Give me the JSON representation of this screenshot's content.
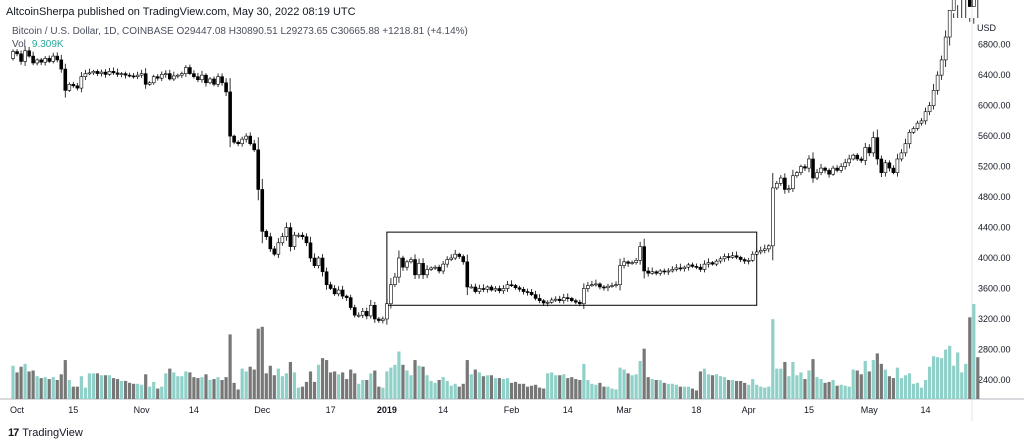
{
  "header": {
    "text": "AltcoinSherpa published on TradingView.com, May 30, 2022 08:19 UTC"
  },
  "legend": {
    "line1": "Bitcoin / U.S. Dollar, 1D, COINBASE  O29447.08  H30890.51  L29273.65  C30665.88  +1218.81 (+4.14%)",
    "vol_label": "Vol",
    "vol_value": "9.309K"
  },
  "footer": {
    "logo_text": "17",
    "brand": "TradingView"
  },
  "chart_data": {
    "type": "candlestick",
    "currency": "USD",
    "y_range": [
      2150,
      7150
    ],
    "y_ticks": [
      "2400.00",
      "2800.00",
      "3200.00",
      "3600.00",
      "4000.00",
      "4400.00",
      "4800.00",
      "5200.00",
      "5600.00",
      "6000.00",
      "6400.00",
      "6800.00"
    ],
    "y_tick_values": [
      2400,
      2800,
      3200,
      3600,
      4000,
      4400,
      4800,
      5200,
      5600,
      6000,
      6400,
      6800
    ],
    "x_ticks": [
      "Oct",
      "15",
      "Nov",
      "14",
      "Dec",
      "17",
      "2019",
      "14",
      "Feb",
      "14",
      "Mar",
      "18",
      "Apr",
      "15",
      "May",
      "14"
    ],
    "x_tick_days": [
      2,
      16,
      33,
      46,
      63,
      80,
      94,
      108,
      125,
      139,
      153,
      171,
      184,
      199,
      214,
      228
    ],
    "annotation_box": {
      "from_day": 94,
      "to_day": 186,
      "from_price": 3380,
      "to_price": 4340
    },
    "candle_colors": {
      "up": "#ffffff",
      "down": "#000000",
      "outline": "#000000"
    },
    "volume_colors": {
      "up": "#8fd1c8",
      "down": "#777777"
    },
    "volume_level_range": [
      0,
      100
    ],
    "closes": [
      6620,
      6710,
      6680,
      6580,
      6720,
      6650,
      6560,
      6600,
      6570,
      6620,
      6580,
      6650,
      6600,
      6480,
      6200,
      6280,
      6260,
      6230,
      6380,
      6420,
      6430,
      6450,
      6420,
      6440,
      6410,
      6450,
      6430,
      6410,
      6420,
      6400,
      6390,
      6380,
      6400,
      6420,
      6280,
      6300,
      6380,
      6360,
      6410,
      6420,
      6350,
      6390,
      6400,
      6420,
      6500,
      6420,
      6380,
      6340,
      6400,
      6300,
      6350,
      6280,
      6380,
      6300,
      6180,
      5600,
      5520,
      5500,
      5560,
      5600,
      5500,
      5420,
      4900,
      4350,
      4280,
      4120,
      4050,
      4200,
      4280,
      4400,
      4150,
      4300,
      4300,
      4280,
      4200,
      4000,
      3900,
      4000,
      3820,
      3650,
      3600,
      3530,
      3580,
      3500,
      3480,
      3350,
      3250,
      3250,
      3300,
      3240,
      3380,
      3200,
      3180,
      3200,
      3400,
      3650,
      3750,
      4000,
      3880,
      3950,
      3980,
      3780,
      3930,
      3780,
      3850,
      3870,
      3880,
      3830,
      3920,
      3980,
      4000,
      4050,
      4020,
      3950,
      3620,
      3620,
      3560,
      3600,
      3590,
      3620,
      3580,
      3600,
      3570,
      3600,
      3650,
      3640,
      3610,
      3590,
      3560,
      3550,
      3520,
      3470,
      3440,
      3410,
      3420,
      3450,
      3460,
      3440,
      3480,
      3470,
      3440,
      3420,
      3400,
      3600,
      3640,
      3650,
      3660,
      3620,
      3610,
      3630,
      3640,
      3650,
      3900,
      3950,
      3930,
      3940,
      3970,
      4150,
      3830,
      3800,
      3820,
      3800,
      3830,
      3820,
      3830,
      3850,
      3870,
      3860,
      3880,
      3910,
      3890,
      3880,
      3850,
      3920,
      3940,
      3920,
      3960,
      3990,
      4020,
      4010,
      4030,
      4010,
      3980,
      3960,
      3970,
      4050,
      4080,
      4100,
      4120,
      4160,
      4920,
      4980,
      5050,
      4900,
      4910,
      5080,
      5120,
      5200,
      5180,
      5300,
      5050,
      5120,
      5180,
      5150,
      5100,
      5180,
      5150,
      5200,
      5250,
      5300,
      5350,
      5300,
      5280,
      5450,
      5380,
      5580,
      5300,
      5120,
      5250,
      5180,
      5120,
      5300,
      5380,
      5500,
      5650,
      5700,
      5770,
      5800,
      5920,
      6000,
      6200,
      6400,
      6600,
      6900,
      7250,
      7400,
      7700,
      7800,
      8000,
      7300,
      8200,
      7900
    ]
  }
}
